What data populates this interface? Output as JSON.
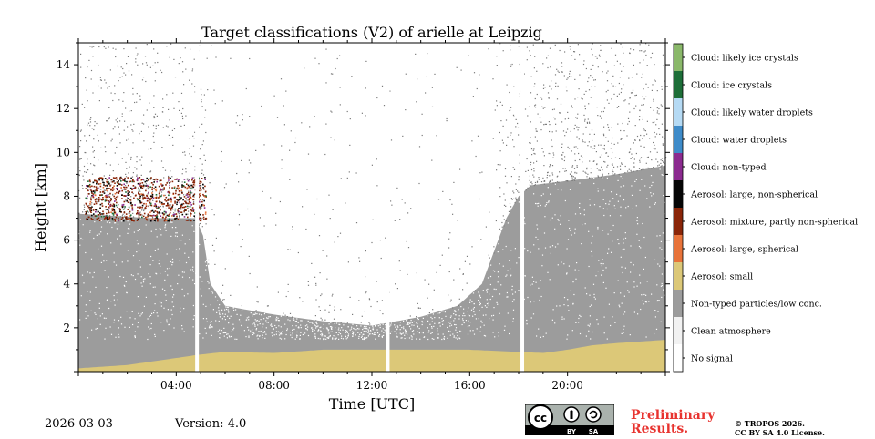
{
  "chart_data": {
    "type": "heatmap",
    "title": "Target classifications (V2) of arielle at Leipzig",
    "xlabel": "Time [UTC]",
    "ylabel": "Height [km]",
    "xlim": [
      0,
      24
    ],
    "ylim": [
      0,
      15
    ],
    "x_ticks": [
      {
        "value": 4,
        "label": "04:00"
      },
      {
        "value": 8,
        "label": "08:00"
      },
      {
        "value": 12,
        "label": "12:00"
      },
      {
        "value": 16,
        "label": "16:00"
      },
      {
        "value": 20,
        "label": "20:00"
      }
    ],
    "y_ticks": [
      {
        "value": 2,
        "label": "2"
      },
      {
        "value": 4,
        "label": "4"
      },
      {
        "value": 6,
        "label": "6"
      },
      {
        "value": 8,
        "label": "8"
      },
      {
        "value": 10,
        "label": "10"
      },
      {
        "value": 12,
        "label": "12"
      },
      {
        "value": 14,
        "label": "14"
      }
    ],
    "legend": [
      {
        "label": "Cloud: likely ice crystals",
        "color": "#8ab86a"
      },
      {
        "label": "Cloud: ice crystals",
        "color": "#1d6e38"
      },
      {
        "label": "Cloud: likely water droplets",
        "color": "#b5daf4"
      },
      {
        "label": "Cloud: water droplets",
        "color": "#3e8bc9"
      },
      {
        "label": "Cloud: non-typed",
        "color": "#8b2a8f"
      },
      {
        "label": "Aerosol: large, non-spherical",
        "color": "#050505"
      },
      {
        "label": "Aerosol: mixture, partly non-spherical",
        "color": "#8a2508"
      },
      {
        "label": "Aerosol: large, spherical",
        "color": "#e8733a"
      },
      {
        "label": "Aerosol: small",
        "color": "#dcc878"
      },
      {
        "label": "Non-typed particles/low conc.",
        "color": "#9c9c9c"
      },
      {
        "label": "Clean atmosphere",
        "color": "#f2f2f2"
      },
      {
        "label": "No signal",
        "color": "#ffffff"
      }
    ],
    "gaps_hours": [
      4.85,
      12.65,
      18.15
    ],
    "layers": {
      "aerosol_small_top": [
        [
          0,
          0.15
        ],
        [
          2,
          0.3
        ],
        [
          4.8,
          0.75
        ],
        [
          6,
          0.9
        ],
        [
          8,
          0.85
        ],
        [
          10,
          1.0
        ],
        [
          12,
          1.0
        ],
        [
          14,
          1.0
        ],
        [
          16,
          1.0
        ],
        [
          18,
          0.9
        ],
        [
          19,
          0.85
        ],
        [
          20,
          1.0
        ],
        [
          21,
          1.2
        ],
        [
          22,
          1.3
        ],
        [
          24,
          1.45
        ]
      ],
      "nontyped_top": [
        [
          0,
          7.2
        ],
        [
          3,
          7.0
        ],
        [
          4.8,
          7.0
        ],
        [
          5.1,
          6.2
        ],
        [
          5.4,
          4.0
        ],
        [
          6,
          3.0
        ],
        [
          8,
          2.6
        ],
        [
          10,
          2.3
        ],
        [
          12,
          2.1
        ],
        [
          14,
          2.5
        ],
        [
          15.5,
          3.0
        ],
        [
          16.5,
          4.0
        ],
        [
          17,
          5.5
        ],
        [
          17.5,
          7.0
        ],
        [
          18,
          8.0
        ],
        [
          18.5,
          8.5
        ],
        [
          20,
          8.7
        ],
        [
          22,
          9.0
        ],
        [
          24,
          9.4
        ]
      ],
      "aerosol_mixture_layer": {
        "x": [
          0.25,
          5.2
        ],
        "y": [
          6.9,
          8.9
        ]
      }
    }
  },
  "footer": {
    "date": "2026-03-03",
    "version": "Version: 4.0",
    "preliminary_line1": "Preliminary",
    "preliminary_line2": "Results.",
    "license_line1": "© TROPOS 2026.",
    "license_line2": "CC BY SA 4.0 License.",
    "badge": {
      "cc": "cc",
      "by": "BY",
      "sa": "SA"
    }
  }
}
